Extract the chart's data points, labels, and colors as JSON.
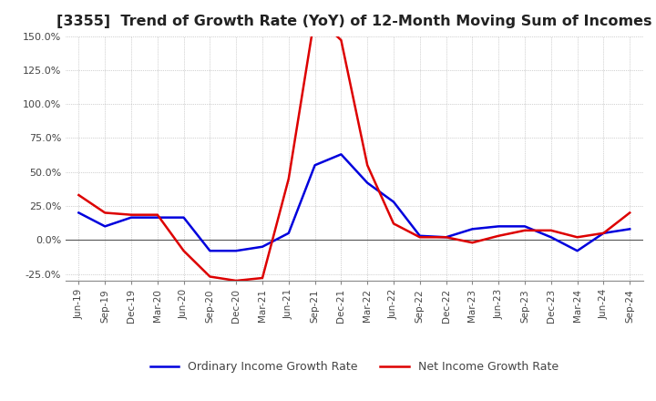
{
  "title": "[3355]  Trend of Growth Rate (YoY) of 12-Month Moving Sum of Incomes",
  "title_fontsize": 11.5,
  "ylim": [
    -0.3,
    0.165
  ],
  "yticks": [
    -0.25,
    0.0,
    0.25,
    0.5,
    0.75,
    1.0,
    1.25,
    1.5
  ],
  "ytick_labels": [
    "-25.0%",
    "0.0%",
    "25.0%",
    "50.0%",
    "75.0%",
    "100.0%",
    "125.0%",
    "150.0%"
  ],
  "x_labels": [
    "Jun-19",
    "Sep-19",
    "Dec-19",
    "Mar-20",
    "Jun-20",
    "Sep-20",
    "Dec-20",
    "Mar-21",
    "Jun-21",
    "Sep-21",
    "Dec-21",
    "Mar-22",
    "Jun-22",
    "Sep-22",
    "Dec-22",
    "Mar-23",
    "Jun-23",
    "Sep-23",
    "Dec-23",
    "Mar-24",
    "Jun-24",
    "Sep-24"
  ],
  "ordinary_income": [
    0.2,
    0.1,
    0.165,
    0.165,
    0.165,
    -0.08,
    -0.08,
    -0.05,
    0.05,
    0.55,
    0.63,
    0.42,
    0.28,
    0.03,
    0.02,
    0.08,
    0.1,
    0.1,
    0.02,
    -0.08,
    0.05,
    0.08
  ],
  "net_income": [
    0.33,
    0.2,
    0.185,
    0.185,
    -0.08,
    -0.27,
    -0.3,
    -0.28,
    0.45,
    1.65,
    1.47,
    0.55,
    0.12,
    0.02,
    0.02,
    -0.02,
    0.03,
    0.07,
    0.07,
    0.02,
    0.05,
    0.2
  ],
  "ordinary_color": "#0000dd",
  "net_color": "#dd0000",
  "bg_color": "#ffffff",
  "grid_color": "#aaaaaa",
  "legend_ordinary": "Ordinary Income Growth Rate",
  "legend_net": "Net Income Growth Rate",
  "line_width": 1.8,
  "zero_line_color": "#555555",
  "spine_color": "#888888"
}
